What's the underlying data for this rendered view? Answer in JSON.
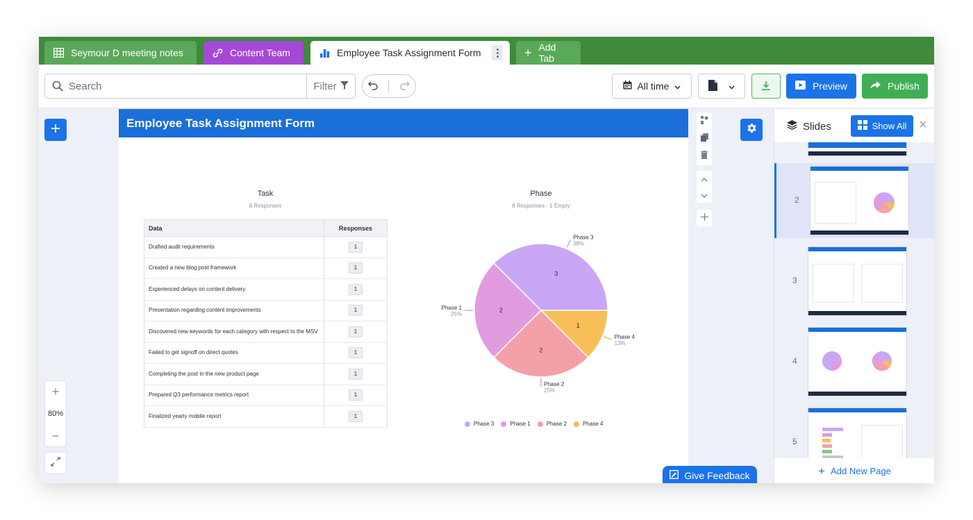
{
  "tabs": [
    {
      "label": "Seymour D meeting notes",
      "icon": "table-icon"
    },
    {
      "label": "Content Team",
      "icon": "link-icon"
    },
    {
      "label": "Employee Task Assignment Form",
      "icon": "bar-chart-icon"
    },
    {
      "label": "Add Tab",
      "icon": "plus-icon"
    }
  ],
  "toolbar": {
    "search_placeholder": "Search",
    "filter_label": "Filter",
    "date_filter": "All time",
    "preview_label": "Preview",
    "publish_label": "Publish"
  },
  "zoom": {
    "level": "80%"
  },
  "slide": {
    "title": "Employee Task Assignment Form",
    "table": {
      "title": "Task",
      "subtitle": "9 Responses",
      "columns": [
        "Data",
        "Responses"
      ],
      "rows": [
        {
          "data": "Drafted audit requirements",
          "responses": "1"
        },
        {
          "data": "Created a new blog post framework",
          "responses": "1"
        },
        {
          "data": "Experienced delays on content delivery",
          "responses": "1"
        },
        {
          "data": "Presentation regarding content improvements",
          "responses": "1"
        },
        {
          "data": "Discovered new keywords for each category with respect to the MSV",
          "responses": "1"
        },
        {
          "data": "Failed to get signoff on direct quotes",
          "responses": "1"
        },
        {
          "data": "Completing the post in the new product page",
          "responses": "1"
        },
        {
          "data": "Prepared Q3 performance metrics report",
          "responses": "1"
        },
        {
          "data": "Finalized yearly mobile report",
          "responses": "1"
        }
      ]
    }
  },
  "chart_data": {
    "type": "pie",
    "title": "Phase",
    "subtitle": "8 Responses - 1 Empty",
    "legend_position": "bottom",
    "slices": [
      {
        "name": "Phase 3",
        "value": 3,
        "percent": "38%",
        "color": "#c9a6f6"
      },
      {
        "name": "Phase 4",
        "value": 1,
        "percent": "13%",
        "color": "#f7be55"
      },
      {
        "name": "Phase 2",
        "value": 2,
        "percent": "25%",
        "color": "#f3a1a6"
      },
      {
        "name": "Phase 1",
        "value": 2,
        "percent": "25%",
        "color": "#e19bdf"
      }
    ],
    "legend": [
      "Phase 3",
      "Phase 1",
      "Phase 2",
      "Phase 4"
    ]
  },
  "slides_panel": {
    "title": "Slides",
    "show_all_label": "Show All",
    "add_page_label": "Add New Page",
    "slides": [
      {
        "number": "2",
        "active": true
      },
      {
        "number": "3",
        "active": false
      },
      {
        "number": "4",
        "active": false
      },
      {
        "number": "5",
        "active": false
      }
    ]
  },
  "feedback_label": "Give Feedback"
}
